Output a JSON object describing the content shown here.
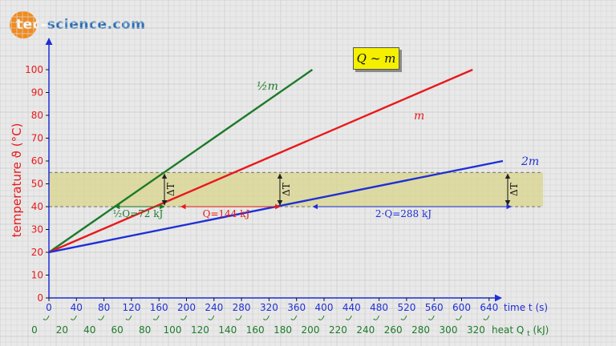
{
  "logo": {
    "part1": "tec",
    "part2": "-",
    "part3": "science",
    "part4": ".com"
  },
  "relation_box": "Q ~ m",
  "colors": {
    "m": "#e8191b",
    "half_m": "#1d7a2a",
    "two_m": "#1f2fd6",
    "band": "#d8d48c",
    "axis": "#1f2fd6"
  },
  "chart_data": {
    "type": "line",
    "ylabel": "temperature ϑ (°C)",
    "xlabel_time": "time t (s)",
    "xlabel_heat": "heat Q",
    "xlabel_heat_sub": "t",
    "xlabel_heat_unit": "(kJ)",
    "ylim": [
      0,
      100
    ],
    "xlim_time": [
      0,
      660
    ],
    "y_ticks": [
      "0",
      "10",
      "20",
      "30",
      "40",
      "50",
      "60",
      "70",
      "80",
      "90",
      "100"
    ],
    "time_ticks": [
      "0",
      "40",
      "80",
      "120",
      "160",
      "200",
      "240",
      "280",
      "320",
      "360",
      "400",
      "440",
      "480",
      "520",
      "560",
      "600",
      "640"
    ],
    "heat_ticks": [
      "0",
      "20",
      "40",
      "60",
      "80",
      "100",
      "120",
      "140",
      "160",
      "180",
      "200",
      "220",
      "240",
      "260",
      "280",
      "300",
      "320"
    ],
    "series": [
      {
        "name": "½m",
        "color_key": "half_m",
        "x": [
          0,
          383
        ],
        "y": [
          20,
          100
        ]
      },
      {
        "name": "m",
        "color_key": "m",
        "x": [
          0,
          616
        ],
        "y": [
          20,
          100
        ]
      },
      {
        "name": "2m",
        "color_key": "two_m",
        "x": [
          0,
          660
        ],
        "y": [
          20,
          60
        ]
      }
    ],
    "band": {
      "y_low": 40,
      "y_high": 55
    },
    "delta_label": "ΔT",
    "annotations": [
      {
        "text": "½Q=72 kJ",
        "color_key": "half_m",
        "x_from": 96,
        "x_to": 168
      },
      {
        "text": "Q=144 kJ",
        "color_key": "m",
        "x_from": 192,
        "x_to": 336
      },
      {
        "text": "2·Q=288 kJ",
        "color_key": "two_m",
        "x_from": 384,
        "x_to": 672
      }
    ]
  }
}
